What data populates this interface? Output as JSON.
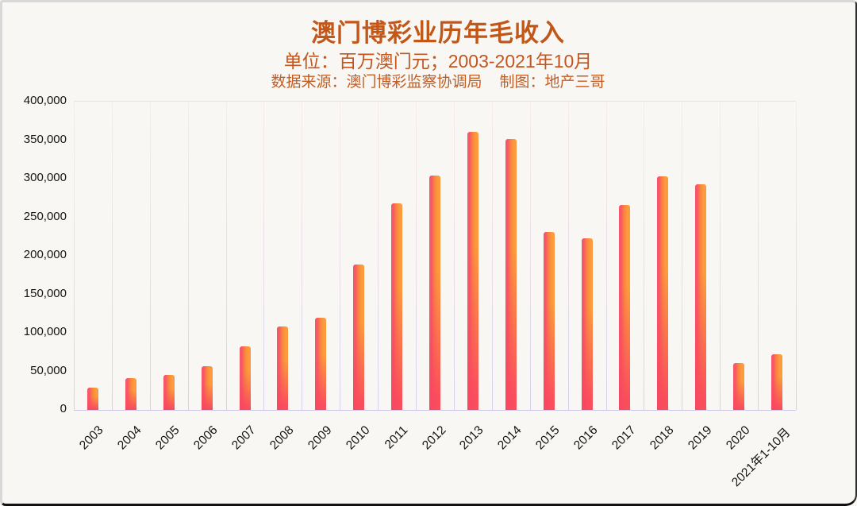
{
  "header": {
    "title": "澳门博彩业历年毛收入",
    "subtitle": "单位：百万澳门元；2003-2021年10月",
    "source": "数据来源：澳门博彩监察协调局",
    "credit": "制图：地产三哥"
  },
  "chart_data": {
    "type": "bar",
    "title": "澳门博彩业历年毛收入",
    "unit": "百万澳门元",
    "period": "2003-2021年10月",
    "categories": [
      "2003",
      "2004",
      "2005",
      "2006",
      "2007",
      "2008",
      "2009",
      "2010",
      "2011",
      "2012",
      "2013",
      "2014",
      "2015",
      "2016",
      "2017",
      "2018",
      "2019",
      "2020",
      "2021年1-10月"
    ],
    "values": [
      29000,
      41500,
      45800,
      56600,
      83000,
      108500,
      119400,
      188500,
      267900,
      304100,
      360700,
      351500,
      231000,
      223200,
      265700,
      302800,
      292500,
      60400,
      72150
    ],
    "ylim": [
      0,
      400000
    ],
    "ytick_step": 50000,
    "ytick_labels": [
      "400,000",
      "350,000",
      "300,000",
      "250,000",
      "200,000",
      "150,000",
      "100,000",
      "50,000",
      "0"
    ],
    "grid": "vertical-only",
    "legend": "none",
    "colors": {
      "background": "#f8f7f3",
      "title_text": "#c2571a",
      "subtitle_text": "#c3561f",
      "axis_text": "#141414",
      "gridline_top": "#f7ece8",
      "gridline_bottom": "#d9cfee",
      "bar_orange": "#fb9b3d",
      "bar_orange_mid": "#f9823f",
      "bar_pink": "#f94660",
      "bar_left_stripe": "#f75868"
    }
  }
}
